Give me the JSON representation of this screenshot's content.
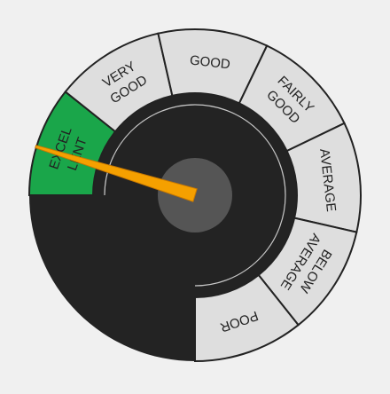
{
  "gauge": {
    "value_band": "EXCELLENT",
    "segments": [
      {
        "key": "excellent",
        "lines": [
          "EXCEL",
          "LENT"
        ],
        "color": "#1aa64a",
        "active": true
      },
      {
        "key": "very-good",
        "lines": [
          "VERY",
          "GOOD"
        ],
        "color": "#dedede",
        "active": false
      },
      {
        "key": "good",
        "lines": [
          "GOOD"
        ],
        "color": "#dedede",
        "active": false
      },
      {
        "key": "fairly-good",
        "lines": [
          "FAIRLY",
          "GOOD"
        ],
        "color": "#dedede",
        "active": false
      },
      {
        "key": "average",
        "lines": [
          "AVERAGE"
        ],
        "color": "#dedede",
        "active": false
      },
      {
        "key": "below-average",
        "lines": [
          "BELOW",
          "AVERAGE"
        ],
        "color": "#dedede",
        "active": false
      },
      {
        "key": "poor",
        "lines": [
          "POOR"
        ],
        "color": "#dedede",
        "active": false
      }
    ],
    "colors": {
      "background": "#f0f0f0",
      "dial": "#232323",
      "hub": "#555555",
      "needle": "#f5a000",
      "active_segment": "#1aa64a",
      "inactive_segment": "#dedede",
      "segment_border": "#222222",
      "label_text": "#222222",
      "inner_ring": "#c8c8c8"
    }
  }
}
